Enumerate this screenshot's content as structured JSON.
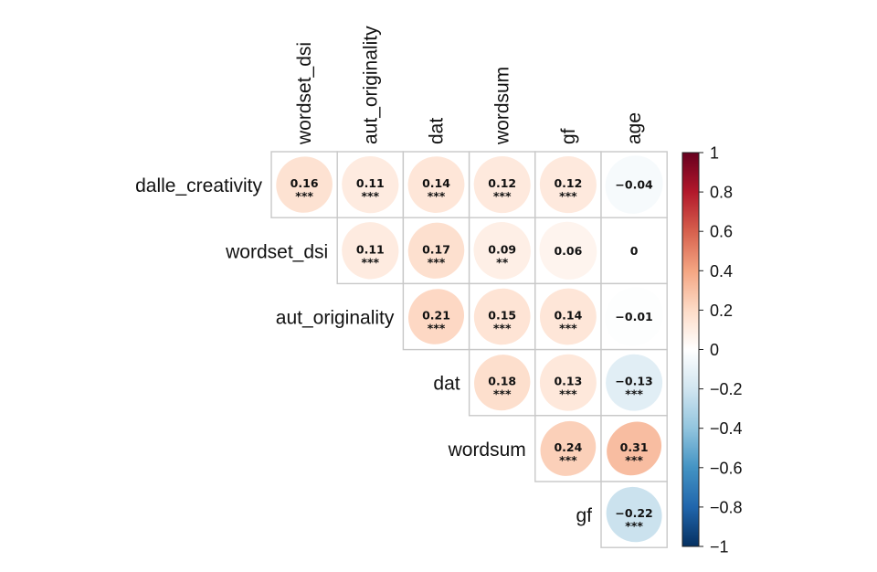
{
  "chart_data": {
    "type": "heatmap",
    "title": "",
    "rows": [
      "dalle_creativity",
      "wordset_dsi",
      "aut_originality",
      "dat",
      "wordsum",
      "gf"
    ],
    "columns": [
      "wordset_dsi",
      "aut_originality",
      "dat",
      "wordsum",
      "gf",
      "age"
    ],
    "layout": "upper-triangle",
    "cells": [
      {
        "row": "dalle_creativity",
        "col": "wordset_dsi",
        "value": 0.16,
        "sig": "***"
      },
      {
        "row": "dalle_creativity",
        "col": "aut_originality",
        "value": 0.11,
        "sig": "***"
      },
      {
        "row": "dalle_creativity",
        "col": "dat",
        "value": 0.14,
        "sig": "***"
      },
      {
        "row": "dalle_creativity",
        "col": "wordsum",
        "value": 0.12,
        "sig": "***"
      },
      {
        "row": "dalle_creativity",
        "col": "gf",
        "value": 0.12,
        "sig": "***"
      },
      {
        "row": "dalle_creativity",
        "col": "age",
        "value": -0.04,
        "sig": ""
      },
      {
        "row": "wordset_dsi",
        "col": "aut_originality",
        "value": 0.11,
        "sig": "***"
      },
      {
        "row": "wordset_dsi",
        "col": "dat",
        "value": 0.17,
        "sig": "***"
      },
      {
        "row": "wordset_dsi",
        "col": "wordsum",
        "value": 0.09,
        "sig": "**"
      },
      {
        "row": "wordset_dsi",
        "col": "gf",
        "value": 0.06,
        "sig": ""
      },
      {
        "row": "wordset_dsi",
        "col": "age",
        "value": 0,
        "sig": ""
      },
      {
        "row": "aut_originality",
        "col": "dat",
        "value": 0.21,
        "sig": "***"
      },
      {
        "row": "aut_originality",
        "col": "wordsum",
        "value": 0.15,
        "sig": "***"
      },
      {
        "row": "aut_originality",
        "col": "gf",
        "value": 0.14,
        "sig": "***"
      },
      {
        "row": "aut_originality",
        "col": "age",
        "value": -0.01,
        "sig": ""
      },
      {
        "row": "dat",
        "col": "wordsum",
        "value": 0.18,
        "sig": "***"
      },
      {
        "row": "dat",
        "col": "gf",
        "value": 0.13,
        "sig": "***"
      },
      {
        "row": "dat",
        "col": "age",
        "value": -0.13,
        "sig": "***"
      },
      {
        "row": "wordsum",
        "col": "gf",
        "value": 0.24,
        "sig": "***"
      },
      {
        "row": "wordsum",
        "col": "age",
        "value": 0.31,
        "sig": "***"
      },
      {
        "row": "gf",
        "col": "age",
        "value": -0.22,
        "sig": "***"
      }
    ],
    "value_range": [
      -1,
      1
    ],
    "colorbar": {
      "ticks": [
        "1",
        "0.8",
        "0.6",
        "0.4",
        "0.2",
        "0",
        "−0.2",
        "−0.4",
        "−0.6",
        "−0.8",
        "−1"
      ],
      "tick_values": [
        1,
        0.8,
        0.6,
        0.4,
        0.2,
        0,
        -0.2,
        -0.4,
        -0.6,
        -0.8,
        -1
      ],
      "colors": [
        "#67001F",
        "#B2182B",
        "#D6604D",
        "#F4A582",
        "#FDDBC7",
        "#FFFFFF",
        "#D1E5F0",
        "#92C5DE",
        "#4393C3",
        "#2166AC",
        "#053061"
      ]
    },
    "grid": true,
    "legend": "right"
  }
}
